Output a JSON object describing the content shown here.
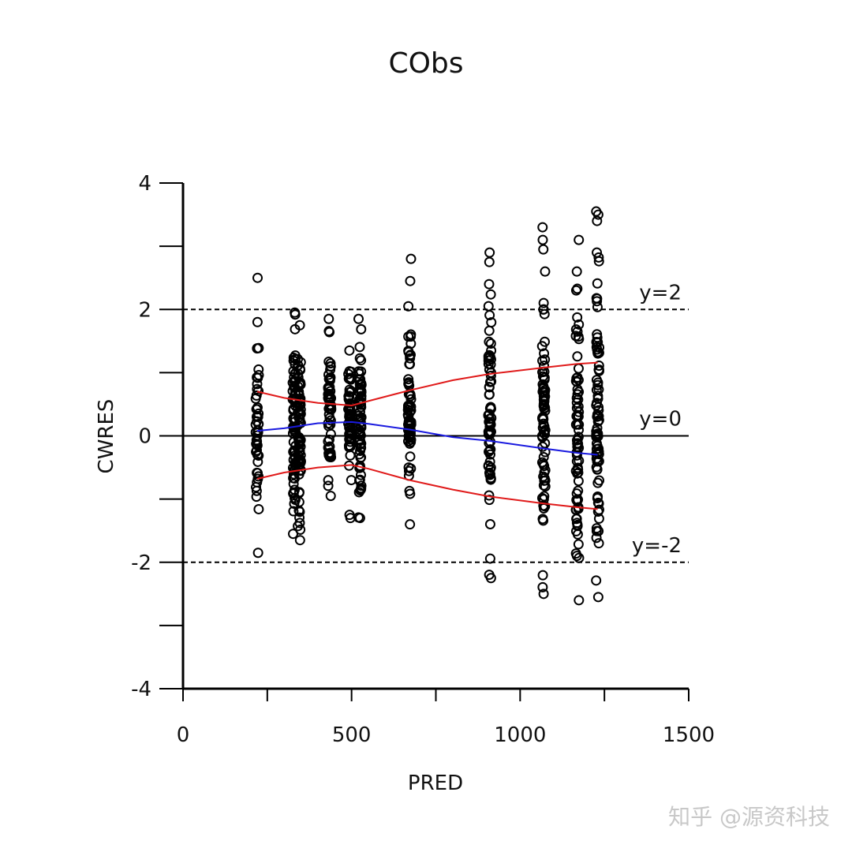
{
  "chart_data": {
    "type": "scatter",
    "title": "CObs",
    "xlabel": "PRED",
    "ylabel": "CWRES",
    "xlim": [
      0,
      1500
    ],
    "ylim": [
      -4,
      4
    ],
    "xticks": [
      0,
      500,
      1000,
      1500
    ],
    "yticks": [
      -4,
      -2,
      0,
      2,
      4
    ],
    "reference_lines": [
      {
        "y": 2,
        "style": "dashed",
        "label": "y=2"
      },
      {
        "y": 0,
        "style": "solid",
        "label": "y=0"
      },
      {
        "y": -2,
        "style": "dashed",
        "label": "y=-2"
      }
    ],
    "clusters": [
      {
        "x": 220,
        "ymin": -1.85,
        "ymax": 1.8,
        "outliers": [
          2.5
        ],
        "count": 45
      },
      {
        "x": 330,
        "ymin": -1.55,
        "ymax": 1.95,
        "outliers": [],
        "count": 70
      },
      {
        "x": 345,
        "ymin": -1.65,
        "ymax": 1.75,
        "outliers": [],
        "count": 70
      },
      {
        "x": 435,
        "ymin": -0.95,
        "ymax": 1.85,
        "outliers": [],
        "count": 55
      },
      {
        "x": 495,
        "ymin": -0.7,
        "ymax": 1.35,
        "outliers": [
          -1.25,
          -1.3
        ],
        "count": 50
      },
      {
        "x": 525,
        "ymin": -1.3,
        "ymax": 1.85,
        "outliers": [],
        "count": 70
      },
      {
        "x": 672,
        "ymin": -1.4,
        "ymax": 2.05,
        "outliers": [
          2.45,
          2.8
        ],
        "count": 60
      },
      {
        "x": 910,
        "ymin": -2.25,
        "ymax": 2.4,
        "outliers": [
          2.75,
          2.9
        ],
        "count": 70
      },
      {
        "x": 1070,
        "ymin": -2.5,
        "ymax": 2.6,
        "outliers": [
          2.95,
          3.1,
          3.3
        ],
        "count": 75
      },
      {
        "x": 1170,
        "ymin": -2.6,
        "ymax": 2.6,
        "outliers": [
          3.1
        ],
        "count": 75
      },
      {
        "x": 1230,
        "ymin": -2.55,
        "ymax": 2.9,
        "outliers": [
          3.4,
          3.5,
          3.55
        ],
        "count": 75
      }
    ],
    "series": [
      {
        "name": "mean",
        "color": "#1a1adf",
        "x": [
          220,
          300,
          400,
          500,
          550,
          672,
          800,
          910,
          1070,
          1170,
          1230
        ],
        "y": [
          0.08,
          0.12,
          0.2,
          0.22,
          0.19,
          0.1,
          -0.02,
          -0.08,
          -0.2,
          -0.27,
          -0.3
        ]
      },
      {
        "name": "upper",
        "color": "#e01a1a",
        "x": [
          220,
          300,
          400,
          500,
          550,
          672,
          800,
          910,
          1070,
          1170,
          1230
        ],
        "y": [
          0.7,
          0.6,
          0.52,
          0.48,
          0.55,
          0.72,
          0.88,
          0.98,
          1.08,
          1.14,
          1.16
        ]
      },
      {
        "name": "lower",
        "color": "#e01a1a",
        "x": [
          220,
          300,
          400,
          500,
          550,
          672,
          800,
          910,
          1070,
          1170,
          1230
        ],
        "y": [
          -0.68,
          -0.58,
          -0.5,
          -0.46,
          -0.52,
          -0.7,
          -0.85,
          -0.96,
          -1.07,
          -1.13,
          -1.16
        ]
      }
    ]
  },
  "watermark": "知乎 @源资科技"
}
